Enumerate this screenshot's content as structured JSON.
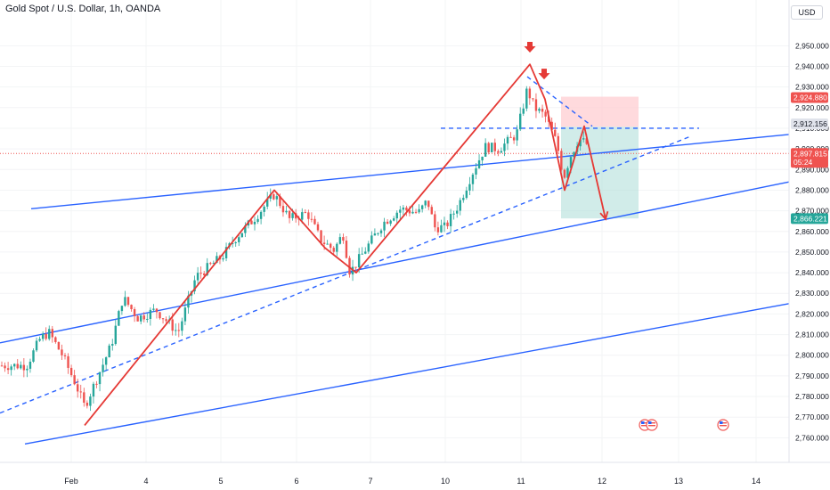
{
  "header": {
    "title": "Gold Spot / U.S. Dollar, 1h, OANDA",
    "currency": "USD"
  },
  "price_tags": {
    "target": "2,924.880",
    "entry": "2,912.156",
    "current": "2,897.815",
    "countdown": "05:24",
    "stop": "2,866.221"
  },
  "colors": {
    "up": "#26a69a",
    "down": "#ef5350",
    "trend": "#2962ff",
    "pattern": "#e53935",
    "profit_zone": "#b2dfdb",
    "loss_zone": "#ffcdd2",
    "current_line": "#ef5350"
  },
  "chart_data": {
    "type": "candlestick",
    "title": "Gold Spot / U.S. Dollar, 1h, OANDA",
    "ylim": [
      2752,
      2958
    ],
    "yticks": [
      2760,
      2770,
      2780,
      2790,
      2800,
      2810,
      2820,
      2830,
      2840,
      2850,
      2860,
      2870,
      2880,
      2890,
      2900,
      2910,
      2920,
      2930,
      2940,
      2950
    ],
    "ytick_labels": [
      "2,760.000",
      "2,770.000",
      "2,780.000",
      "2,790.000",
      "2,800.000",
      "2,810.000",
      "2,820.000",
      "2,830.000",
      "2,840.000",
      "2,850.000",
      "2,860.000",
      "2,870.000",
      "2,880.000",
      "2,890.000",
      "2,900.000",
      "2,910.000",
      "2,920.000",
      "2,930.000",
      "2,940.000",
      "2,950.000"
    ],
    "xticks": [
      {
        "label": "Feb",
        "t": 80
      },
      {
        "label": "4",
        "t": 164
      },
      {
        "label": "5",
        "t": 248
      },
      {
        "label": "6",
        "t": 333
      },
      {
        "label": "7",
        "t": 416
      },
      {
        "label": "10",
        "t": 500
      },
      {
        "label": "11",
        "t": 585
      },
      {
        "label": "12",
        "t": 676
      },
      {
        "label": "13",
        "t": 762
      },
      {
        "label": "14",
        "t": 849
      }
    ],
    "price_path": [
      [
        0,
        2795
      ],
      [
        30,
        2795
      ],
      [
        45,
        2808
      ],
      [
        55,
        2811
      ],
      [
        70,
        2800
      ],
      [
        85,
        2786
      ],
      [
        95,
        2775
      ],
      [
        110,
        2790
      ],
      [
        125,
        2805
      ],
      [
        138,
        2828
      ],
      [
        155,
        2818
      ],
      [
        175,
        2822
      ],
      [
        200,
        2811
      ],
      [
        220,
        2838
      ],
      [
        250,
        2848
      ],
      [
        265,
        2857
      ],
      [
        285,
        2866
      ],
      [
        308,
        2878
      ],
      [
        325,
        2866
      ],
      [
        345,
        2869
      ],
      [
        360,
        2856
      ],
      [
        375,
        2851
      ],
      [
        385,
        2859
      ],
      [
        393,
        2840
      ],
      [
        410,
        2851
      ],
      [
        430,
        2864
      ],
      [
        450,
        2871
      ],
      [
        470,
        2869
      ],
      [
        480,
        2875
      ],
      [
        488,
        2862
      ],
      [
        500,
        2862
      ],
      [
        515,
        2873
      ],
      [
        530,
        2888
      ],
      [
        545,
        2901
      ],
      [
        560,
        2900
      ],
      [
        580,
        2907
      ],
      [
        592,
        2929
      ],
      [
        600,
        2920
      ],
      [
        612,
        2916
      ],
      [
        625,
        2903
      ],
      [
        633,
        2886
      ],
      [
        640,
        2896
      ],
      [
        650,
        2905
      ],
      [
        660,
        2902
      ]
    ],
    "trendlines": [
      {
        "style": "solid",
        "points": [
          [
            35,
            2871
          ],
          [
            886,
            2907
          ]
        ]
      },
      {
        "style": "solid",
        "points": [
          [
            0,
            2806
          ],
          [
            886,
            2884
          ]
        ]
      },
      {
        "style": "solid",
        "points": [
          [
            28,
            2757
          ],
          [
            886,
            2825
          ]
        ]
      },
      {
        "style": "dashed",
        "points": [
          [
            0,
            2772
          ],
          [
            775,
            2906
          ]
        ]
      },
      {
        "style": "dashed",
        "points": [
          [
            495,
            2910
          ],
          [
            785,
            2910
          ]
        ]
      },
      {
        "style": "dashed",
        "points": [
          [
            592,
            2935
          ],
          [
            665,
            2911
          ]
        ]
      }
    ],
    "pattern_path": [
      [
        95,
        2766
      ],
      [
        308,
        2880
      ],
      [
        365,
        2852
      ],
      [
        400,
        2840
      ],
      [
        595,
        2941
      ],
      [
        612,
        2924
      ],
      [
        634,
        2880
      ],
      [
        656,
        2911
      ],
      [
        680,
        2866
      ]
    ],
    "markers": [
      {
        "type": "down-arrow",
        "t": 595,
        "price": 2948
      },
      {
        "type": "down-arrow",
        "t": 611,
        "price": 2935
      }
    ],
    "position": {
      "x_start": 630,
      "x_end": 717,
      "entry": 2910.7,
      "target_top": 2925.3,
      "stop_bottom": 2866.3
    },
    "current_price": 2897.815,
    "events": [
      {
        "t": 724,
        "label": "US"
      },
      {
        "t": 732,
        "label": "US"
      },
      {
        "t": 812,
        "label": "US"
      }
    ]
  }
}
